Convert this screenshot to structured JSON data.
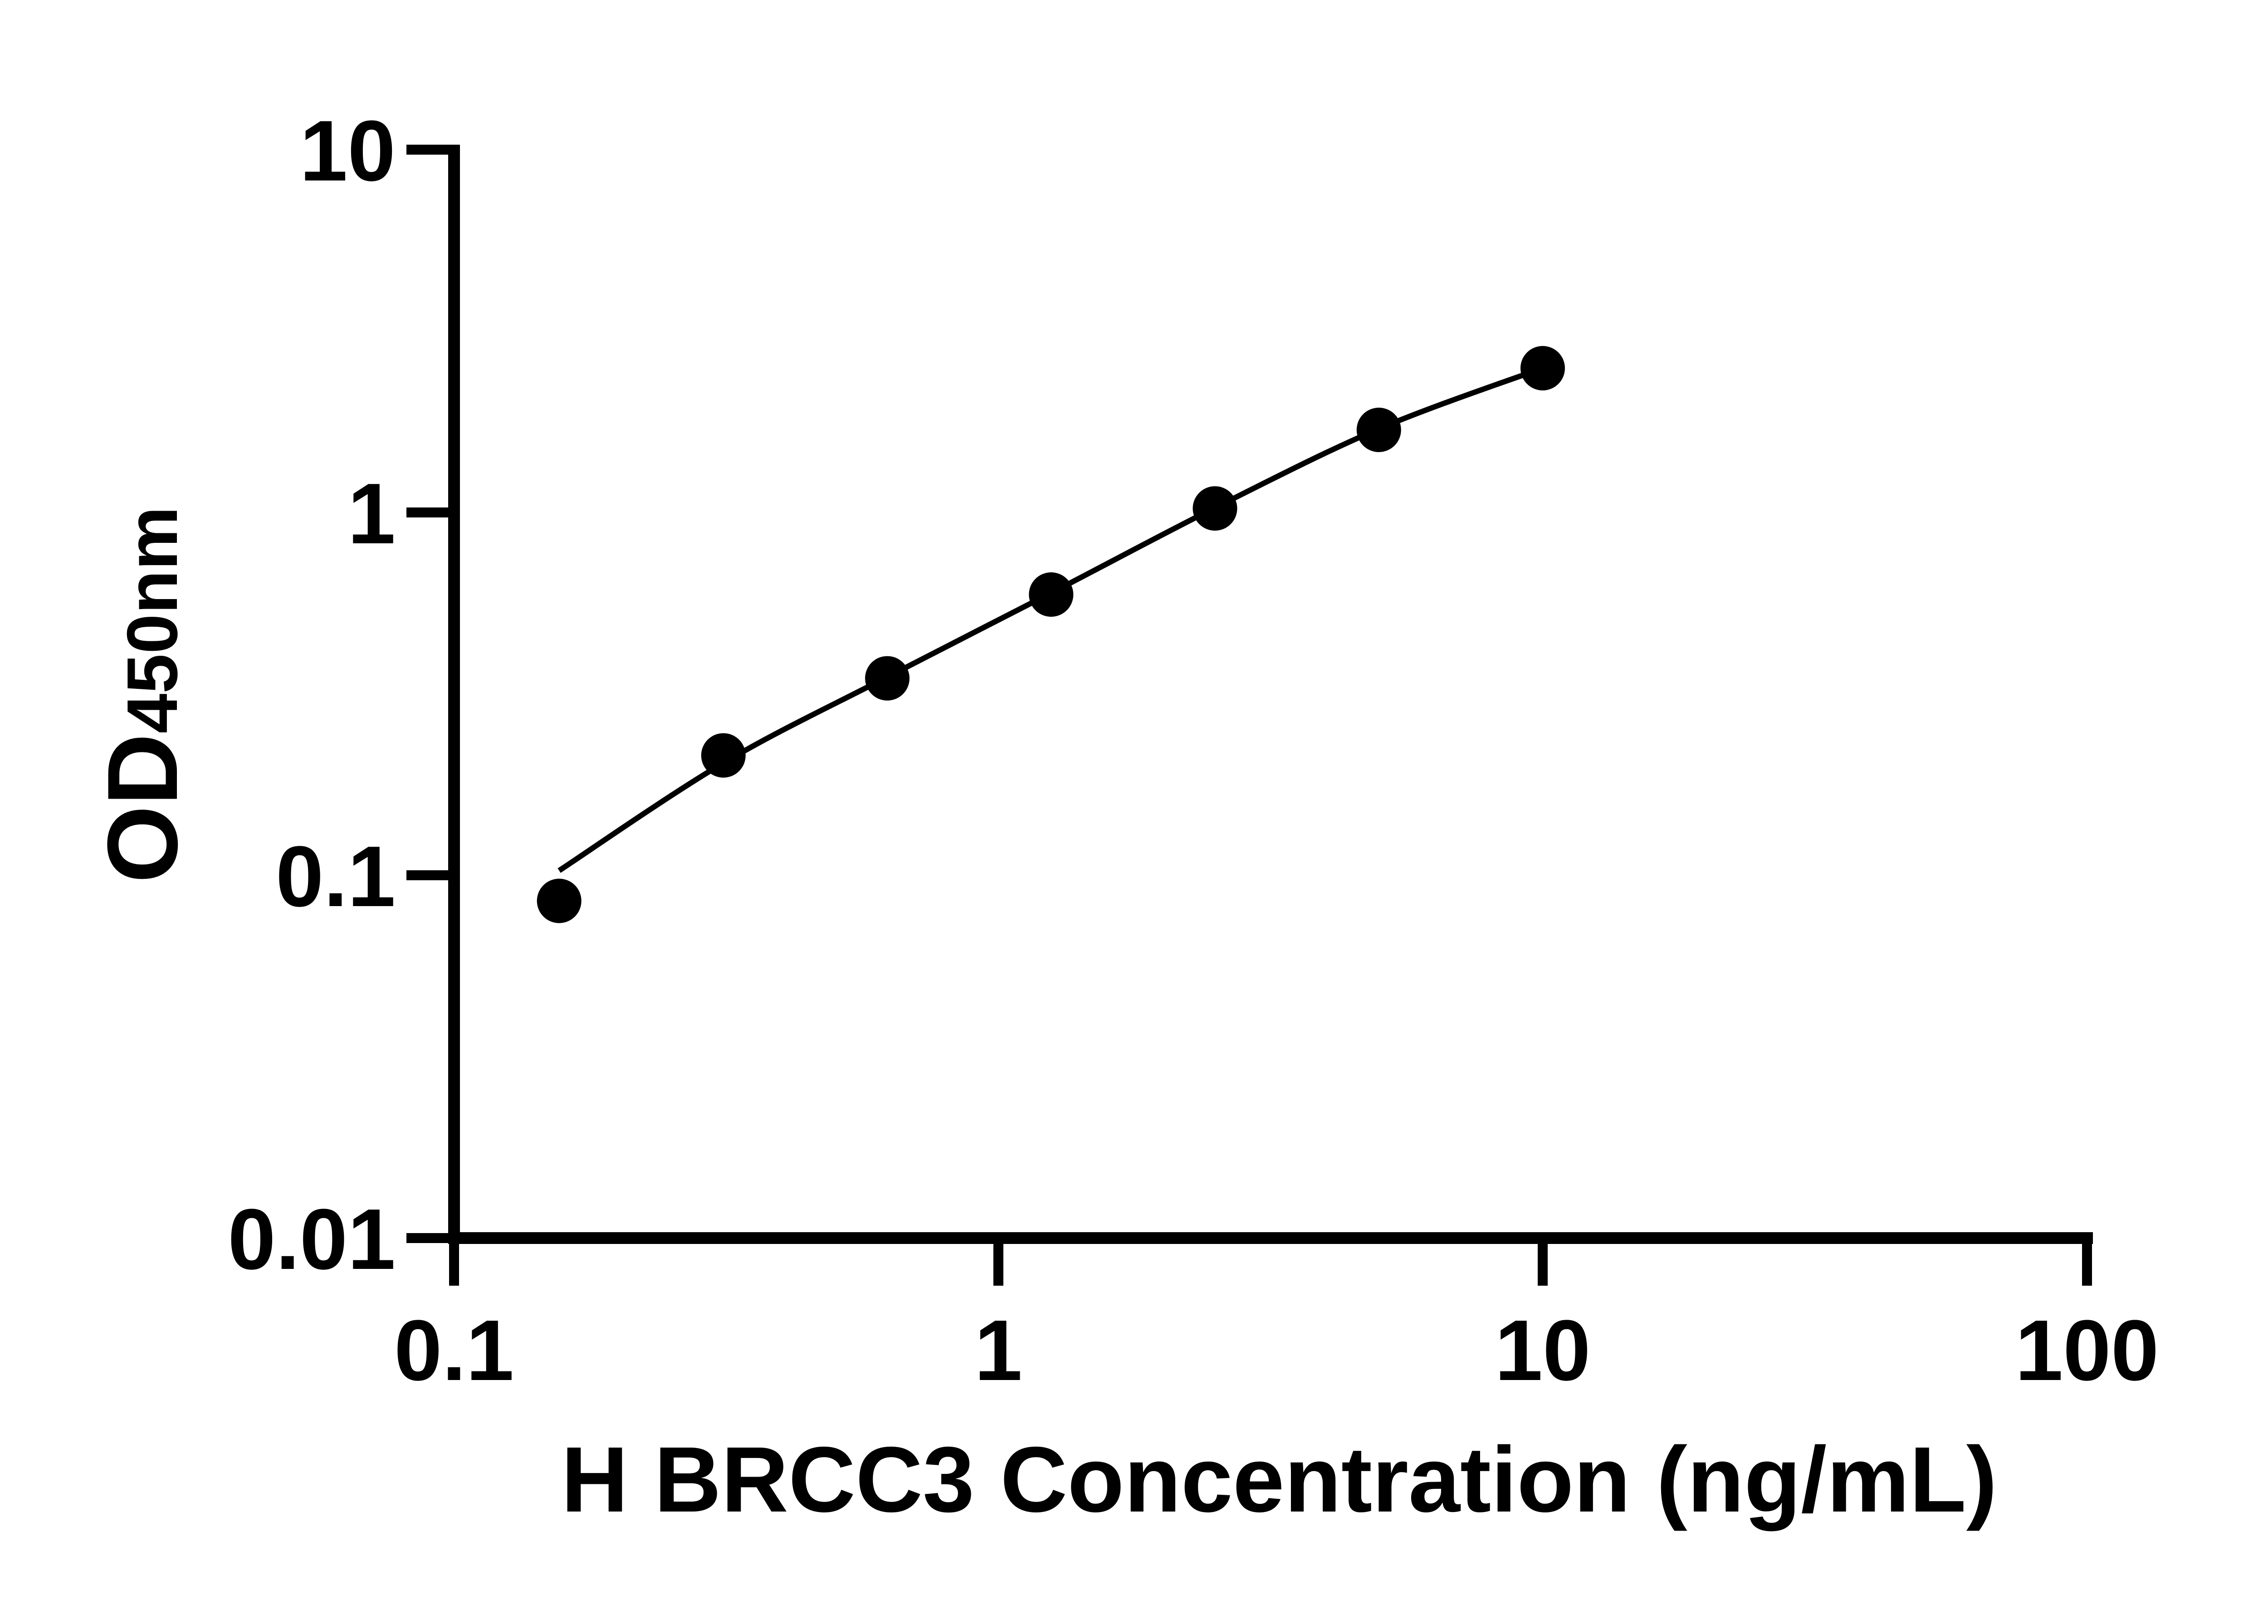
{
  "figure": {
    "background_color": "#ffffff",
    "ink_color": "#000000"
  },
  "chart_data": {
    "type": "scatter",
    "title": "",
    "xlabel": "H BRCC3 Concentration (ng/mL)",
    "ylabel_main": "OD",
    "ylabel_sub": "450nm",
    "x_scale": "log10",
    "y_scale": "log10",
    "xlim": [
      0.1,
      100
    ],
    "ylim": [
      0.01,
      10
    ],
    "grid": false,
    "legend": "none",
    "marker": {
      "shape": "filled-circle",
      "color": "#000000"
    },
    "x_ticks": [
      {
        "value": 0.1,
        "label": "0.1"
      },
      {
        "value": 1,
        "label": "1"
      },
      {
        "value": 10,
        "label": "10"
      },
      {
        "value": 100,
        "label": "100"
      }
    ],
    "y_ticks": [
      {
        "value": 10,
        "label": "10"
      },
      {
        "value": 1,
        "label": "1"
      },
      {
        "value": 0.1,
        "label": "0.1"
      },
      {
        "value": 0.01,
        "label": "0.01"
      }
    ],
    "series": [
      {
        "points": [
          {
            "x": 0.156,
            "y": 0.085
          },
          {
            "x": 0.3125,
            "y": 0.214
          },
          {
            "x": 0.625,
            "y": 0.349
          },
          {
            "x": 1.25,
            "y": 0.594
          },
          {
            "x": 2.5,
            "y": 1.026
          },
          {
            "x": 5,
            "y": 1.689
          },
          {
            "x": 10,
            "y": 2.498
          }
        ]
      }
    ],
    "fit_curve_points": [
      {
        "x": 0.156,
        "y": 0.103
      },
      {
        "x": 0.3125,
        "y": 0.204
      },
      {
        "x": 0.625,
        "y": 0.352
      },
      {
        "x": 1.25,
        "y": 0.6
      },
      {
        "x": 2.5,
        "y": 1.03
      },
      {
        "x": 5,
        "y": 1.7
      },
      {
        "x": 10,
        "y": 2.5
      }
    ]
  }
}
